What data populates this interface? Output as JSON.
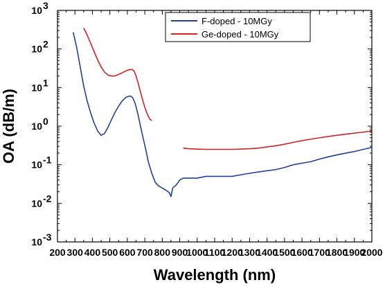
{
  "chart_data": {
    "type": "line",
    "xlabel": "Wavelength (nm)",
    "ylabel": "OA (dB/m)",
    "y_scale": "log",
    "xlim": [
      200,
      2000
    ],
    "ylim": [
      0.001,
      1000
    ],
    "x_ticks": [
      "200",
      "300",
      "400",
      "500",
      "600",
      "700",
      "800",
      "900",
      "1000",
      "1100",
      "1200",
      "1300",
      "1400",
      "1500",
      "1600",
      "1700",
      "1800",
      "1900",
      "2000"
    ],
    "y_ticks": [
      {
        "base": "10",
        "exp": "-3"
      },
      {
        "base": "10",
        "exp": "-2"
      },
      {
        "base": "10",
        "exp": "-1"
      },
      {
        "base": "10",
        "exp": "0"
      },
      {
        "base": "10",
        "exp": "1"
      },
      {
        "base": "10",
        "exp": "2"
      },
      {
        "base": "10",
        "exp": "3"
      }
    ],
    "legend_position": "top-right",
    "series": [
      {
        "name": "F-doped - 10MGy",
        "color": "#1f3f9a",
        "segments": [
          {
            "x": [
              290,
              310,
              330,
              350,
              370,
              390,
              410,
              430,
              450,
              470,
              490,
              510,
              530,
              550,
              570,
              590,
              610,
              620,
              630,
              640,
              650,
              660,
              670,
              680,
              690,
              700,
              710,
              720,
              740,
              760,
              780,
              800,
              820,
              840,
              850,
              860,
              880,
              900,
              920,
              950,
              1000,
              1050,
              1100,
              1150,
              1200,
              1250,
              1300,
              1350,
              1400,
              1450,
              1500,
              1550,
              1600,
              1650,
              1700,
              1750,
              1800,
              1850,
              1900,
              1950,
              2000
            ],
            "y": [
              270,
              110,
              35,
              11,
              4.5,
              2.2,
              1.2,
              0.75,
              0.58,
              0.65,
              0.95,
              1.5,
              2.3,
              3.3,
              4.5,
              5.5,
              6,
              6,
              5.5,
              4.4,
              3.2,
              2.1,
              1.3,
              0.8,
              0.5,
              0.32,
              0.2,
              0.12,
              0.06,
              0.035,
              0.028,
              0.025,
              0.022,
              0.019,
              0.015,
              0.025,
              0.03,
              0.04,
              0.045,
              0.045,
              0.045,
              0.05,
              0.05,
              0.05,
              0.05,
              0.055,
              0.06,
              0.065,
              0.07,
              0.075,
              0.085,
              0.1,
              0.11,
              0.12,
              0.14,
              0.16,
              0.18,
              0.2,
              0.22,
              0.25,
              0.28
            ]
          }
        ]
      },
      {
        "name": "Ge-doped - 10MGy",
        "color": "#d42222",
        "segments": [
          {
            "x": [
              350,
              370,
              390,
              410,
              430,
              450,
              470,
              490,
              510,
              530,
              550,
              570,
              590,
              610,
              620,
              630,
              640,
              650,
              660,
              670,
              680,
              690,
              700,
              710,
              720,
              730,
              740
            ],
            "y": [
              350,
              230,
              140,
              85,
              52,
              34,
              25,
              21,
              20,
              20,
              22,
              24,
              27,
              29,
              29.5,
              29,
              26,
              20,
              14,
              9.5,
              6.4,
              4.4,
              3.1,
              2.3,
              1.8,
              1.5,
              1.4
            ]
          },
          {
            "x": [
              920,
              950,
              1000,
              1050,
              1100,
              1150,
              1200,
              1250,
              1300,
              1350,
              1400,
              1450,
              1500,
              1550,
              1600,
              1650,
              1700,
              1750,
              1800,
              1850,
              1900,
              1950,
              2000
            ],
            "y": [
              0.27,
              0.26,
              0.255,
              0.25,
              0.25,
              0.25,
              0.25,
              0.255,
              0.26,
              0.27,
              0.29,
              0.31,
              0.34,
              0.38,
              0.42,
              0.46,
              0.5,
              0.54,
              0.58,
              0.62,
              0.66,
              0.7,
              0.75
            ]
          }
        ]
      }
    ]
  }
}
